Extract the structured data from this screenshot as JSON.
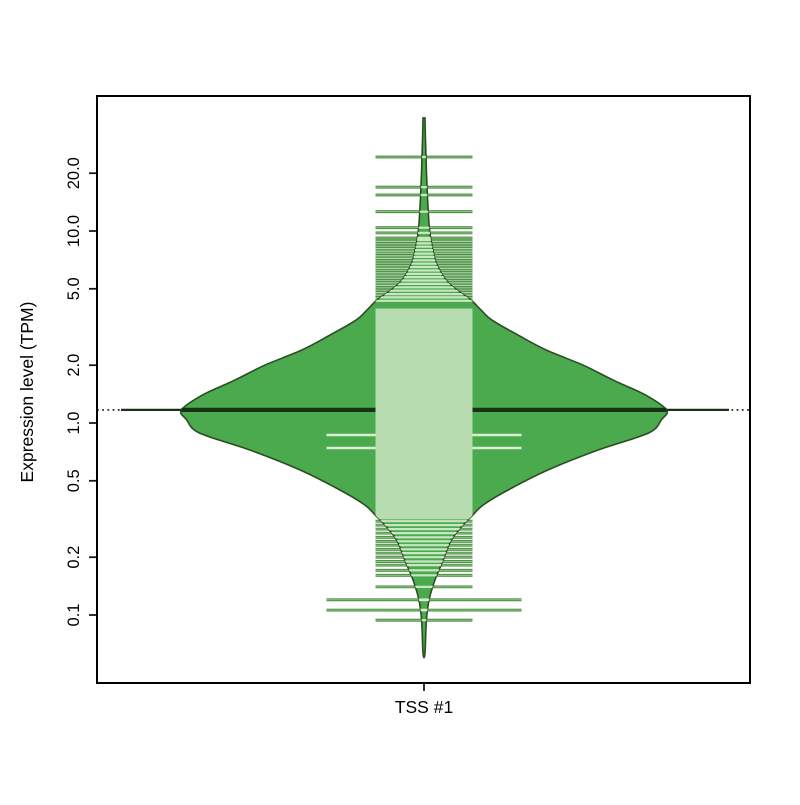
{
  "x_axis": {
    "label": "TSS #1"
  },
  "y_axis": {
    "label": "Expression level (TPM)",
    "ticks": [
      "0.1",
      "0.2",
      "0.5",
      "1.0",
      "2.0",
      "5.0",
      "10.0",
      "20.0"
    ],
    "tick_values": [
      0.1,
      0.2,
      0.5,
      1.0,
      2.0,
      5.0,
      10.0,
      20.0
    ]
  },
  "colors": {
    "bean_fill": "#4baa4e",
    "bean_border": "#2b4d22",
    "band": "#b6dcb0",
    "inner_line": "#c9e7c2",
    "inner_wide_line": "#d9eed3",
    "outer_line_dark": "#3c8034",
    "outer_line_core": "#8fca86",
    "median_line": "#163413",
    "overall_line": "#1a1a1a",
    "axis": "#1a1a1a"
  },
  "chart_data": {
    "type": "violin",
    "title": "",
    "categories": [
      "TSS #1"
    ],
    "xlabel": "",
    "ylabel": "Expression level (TPM)",
    "y_scale": "log10",
    "ylim": [
      0.044,
      50
    ],
    "y_ticks": [
      0.1,
      0.2,
      0.5,
      1.0,
      2.0,
      5.0,
      10.0,
      20.0
    ],
    "grid": false,
    "legend": false,
    "center_line_tpm": 1.17,
    "overall_average_tpm": 1.17,
    "density_band_tpm": [
      0.315,
      3.95
    ],
    "violin_outline": [
      [
        38.8,
        0.004
      ],
      [
        29.7,
        0.006
      ],
      [
        20.7,
        0.01
      ],
      [
        14.5,
        0.015
      ],
      [
        10.1,
        0.023
      ],
      [
        7.95,
        0.037
      ],
      [
        6.65,
        0.054
      ],
      [
        5.55,
        0.091
      ],
      [
        4.93,
        0.136
      ],
      [
        4.37,
        0.194
      ],
      [
        3.87,
        0.236
      ],
      [
        3.43,
        0.281
      ],
      [
        2.87,
        0.388
      ],
      [
        2.4,
        0.504
      ],
      [
        2.0,
        0.657
      ],
      [
        1.67,
        0.781
      ],
      [
        1.4,
        0.913
      ],
      [
        1.17,
        1.0
      ],
      [
        1.04,
        0.979
      ],
      [
        0.887,
        0.926
      ],
      [
        0.724,
        0.719
      ],
      [
        0.57,
        0.512
      ],
      [
        0.448,
        0.347
      ],
      [
        0.374,
        0.244
      ],
      [
        0.332,
        0.202
      ],
      [
        0.294,
        0.161
      ],
      [
        0.245,
        0.112
      ],
      [
        0.193,
        0.079
      ],
      [
        0.152,
        0.045
      ],
      [
        0.12,
        0.021
      ],
      [
        0.094,
        0.01
      ],
      [
        0.063,
        0.004
      ]
    ],
    "beanlines_tpm": [
      24.3,
      16.9,
      15.4,
      12.6,
      10.4,
      9.77,
      9.2,
      8.98,
      8.62,
      8.28,
      7.95,
      7.63,
      7.33,
      7.04,
      6.76,
      6.49,
      6.23,
      5.98,
      5.75,
      5.52,
      5.3,
      5.09,
      4.89,
      4.69,
      4.51,
      4.33,
      0.308,
      0.294,
      0.28,
      0.267,
      0.254,
      0.242,
      0.231,
      0.22,
      0.21,
      0.2,
      0.19,
      0.182,
      0.171,
      0.161,
      0.14,
      0.094
    ],
    "beanlines_wide_tpm": [
      0.866,
      0.741,
      0.12,
      0.106
    ]
  }
}
